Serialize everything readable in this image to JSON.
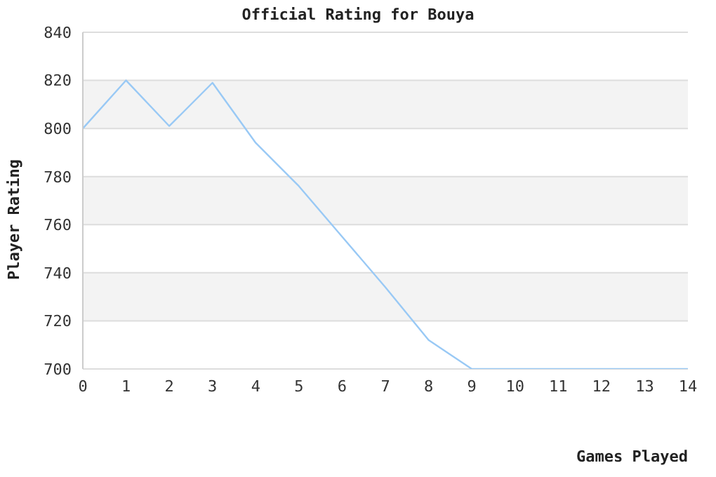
{
  "chart_data": {
    "type": "line",
    "title": "Official Rating for Bouya",
    "xlabel": "Games Played",
    "ylabel": "Player Rating",
    "x": [
      0,
      1,
      2,
      3,
      4,
      5,
      6,
      7,
      8,
      9,
      10,
      11,
      12,
      13,
      14
    ],
    "series": [
      {
        "color": "#99c9f5",
        "values": [
          800,
          820,
          801,
          819,
          794,
          776,
          755,
          734,
          712,
          700,
          700,
          700,
          700,
          700,
          700
        ]
      }
    ],
    "xlim": [
      0,
      14
    ],
    "xticks": [
      0,
      1,
      2,
      3,
      4,
      5,
      6,
      7,
      8,
      9,
      10,
      11,
      12,
      13,
      14
    ],
    "ylim": [
      700,
      840
    ],
    "yticks": [
      700,
      720,
      740,
      760,
      780,
      800,
      820,
      840
    ],
    "grid": "y",
    "legend": false,
    "marker": "none",
    "line_style": "solid"
  }
}
